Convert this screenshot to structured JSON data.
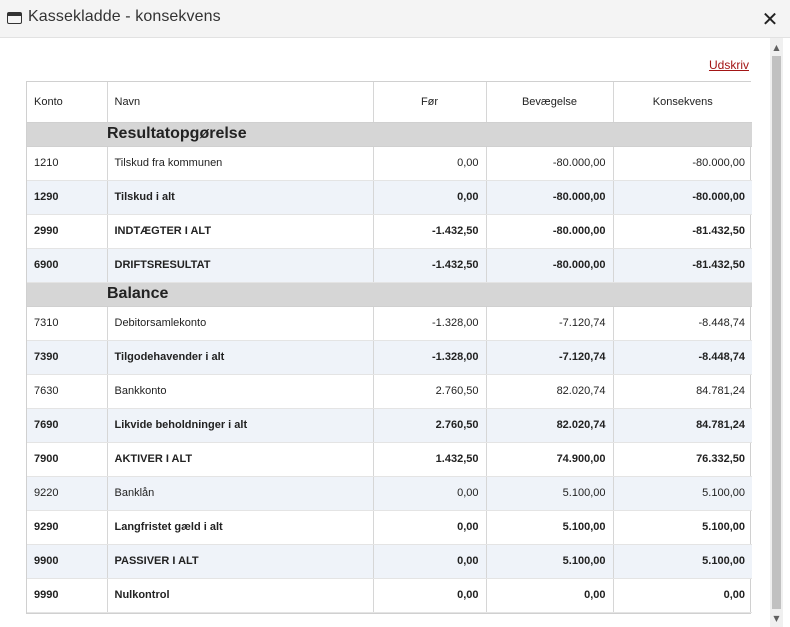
{
  "window": {
    "title": "Kassekladde - konsekvens",
    "window_icon": "window-icon",
    "close_icon": "close-icon",
    "close_glyph": "✕"
  },
  "toolbar": {
    "print_label": "Udskriv"
  },
  "table": {
    "columns": [
      "Konto",
      "Navn",
      "Før",
      "Bevægelse",
      "Konsekvens"
    ],
    "sections": [
      {
        "title": "Resultatopgørelse",
        "rows": [
          {
            "konto": "1210",
            "navn": "Tilskud fra kommunen",
            "foer": "0,00",
            "bevaegelse": "-80.000,00",
            "konsekvens": "-80.000,00",
            "bold": false
          },
          {
            "konto": "1290",
            "navn": "Tilskud i alt",
            "foer": "0,00",
            "bevaegelse": "-80.000,00",
            "konsekvens": "-80.000,00",
            "bold": true
          },
          {
            "konto": "2990",
            "navn": "INDTÆGTER I ALT",
            "foer": "-1.432,50",
            "bevaegelse": "-80.000,00",
            "konsekvens": "-81.432,50",
            "bold": true
          },
          {
            "konto": "6900",
            "navn": "DRIFTSRESULTAT",
            "foer": "-1.432,50",
            "bevaegelse": "-80.000,00",
            "konsekvens": "-81.432,50",
            "bold": true
          }
        ]
      },
      {
        "title": "Balance",
        "rows": [
          {
            "konto": "7310",
            "navn": "Debitorsamlekonto",
            "foer": "-1.328,00",
            "bevaegelse": "-7.120,74",
            "konsekvens": "-8.448,74",
            "bold": false
          },
          {
            "konto": "7390",
            "navn": "Tilgodehavender i alt",
            "foer": "-1.328,00",
            "bevaegelse": "-7.120,74",
            "konsekvens": "-8.448,74",
            "bold": true
          },
          {
            "konto": "7630",
            "navn": "Bankkonto",
            "foer": "2.760,50",
            "bevaegelse": "82.020,74",
            "konsekvens": "84.781,24",
            "bold": false
          },
          {
            "konto": "7690",
            "navn": "Likvide beholdninger i alt",
            "foer": "2.760,50",
            "bevaegelse": "82.020,74",
            "konsekvens": "84.781,24",
            "bold": true
          },
          {
            "konto": "7900",
            "navn": "AKTIVER I ALT",
            "foer": "1.432,50",
            "bevaegelse": "74.900,00",
            "konsekvens": "76.332,50",
            "bold": true
          },
          {
            "konto": "9220",
            "navn": "Banklån",
            "foer": "0,00",
            "bevaegelse": "5.100,00",
            "konsekvens": "5.100,00",
            "bold": false
          },
          {
            "konto": "9290",
            "navn": "Langfristet gæld i alt",
            "foer": "0,00",
            "bevaegelse": "5.100,00",
            "konsekvens": "5.100,00",
            "bold": true
          },
          {
            "konto": "9900",
            "navn": "PASSIVER I ALT",
            "foer": "0,00",
            "bevaegelse": "5.100,00",
            "konsekvens": "5.100,00",
            "bold": true
          },
          {
            "konto": "9990",
            "navn": "Nulkontrol",
            "foer": "0,00",
            "bevaegelse": "0,00",
            "konsekvens": "0,00",
            "bold": true
          }
        ]
      }
    ]
  },
  "scrollbar": {
    "up_glyph": "▲",
    "down_glyph": "▼"
  },
  "colors": {
    "link": "#a31515",
    "section_bg": "#d6d6d6",
    "alt_row_bg": "#eff3f9"
  }
}
